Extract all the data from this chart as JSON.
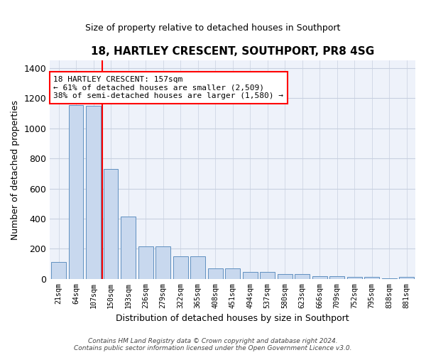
{
  "title": "18, HARTLEY CRESCENT, SOUTHPORT, PR8 4SG",
  "subtitle": "Size of property relative to detached houses in Southport",
  "xlabel": "Distribution of detached houses by size in Southport",
  "ylabel": "Number of detached properties",
  "categories": [
    "21sqm",
    "64sqm",
    "107sqm",
    "150sqm",
    "193sqm",
    "236sqm",
    "279sqm",
    "322sqm",
    "365sqm",
    "408sqm",
    "451sqm",
    "494sqm",
    "537sqm",
    "580sqm",
    "623sqm",
    "666sqm",
    "709sqm",
    "752sqm",
    "795sqm",
    "838sqm",
    "881sqm"
  ],
  "values": [
    110,
    1155,
    1150,
    730,
    415,
    215,
    215,
    150,
    150,
    70,
    68,
    47,
    47,
    32,
    32,
    20,
    20,
    15,
    15,
    3,
    15
  ],
  "bar_color": "#c8d8ee",
  "bar_edge_color": "#6090c0",
  "property_line_x": 2.5,
  "annotation_text": "18 HARTLEY CRESCENT: 157sqm\n← 61% of detached houses are smaller (2,509)\n38% of semi-detached houses are larger (1,580) →",
  "annotation_box_color": "white",
  "annotation_box_edge_color": "red",
  "vline_color": "red",
  "ylim": [
    0,
    1450
  ],
  "yticks": [
    0,
    200,
    400,
    600,
    800,
    1000,
    1200,
    1400
  ],
  "footer": "Contains HM Land Registry data © Crown copyright and database right 2024.\nContains public sector information licensed under the Open Government Licence v3.0.",
  "bg_color": "#eef2fa",
  "grid_color": "#c8d0e0",
  "figsize": [
    6.0,
    5.0
  ],
  "dpi": 100
}
